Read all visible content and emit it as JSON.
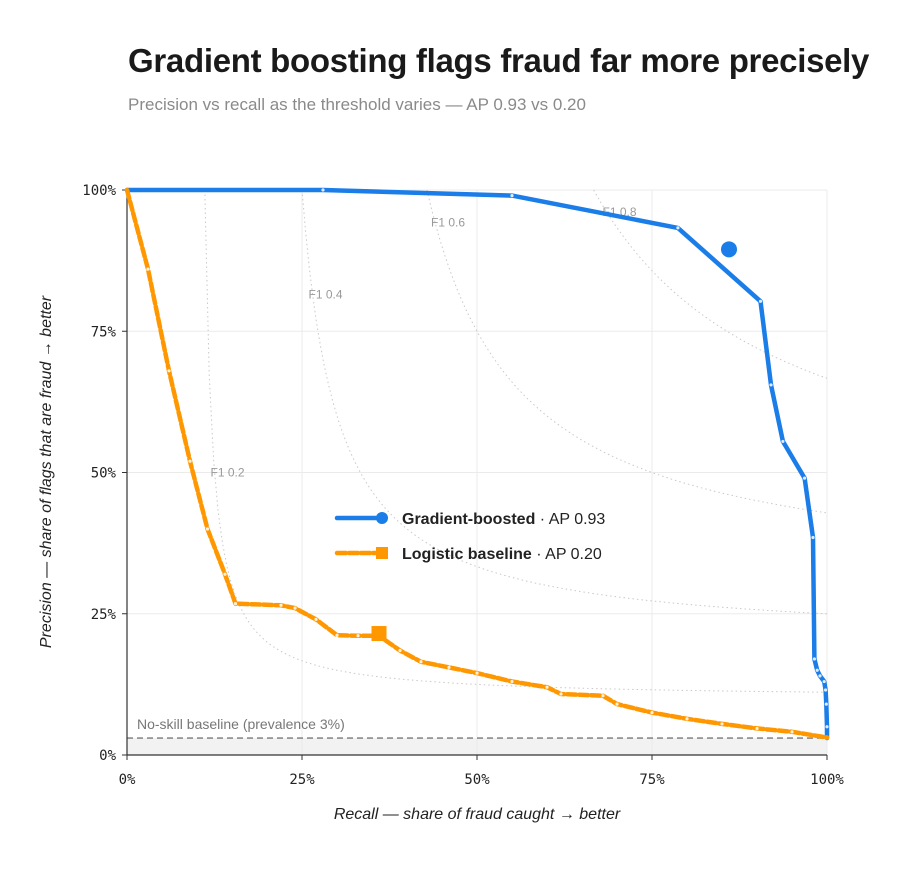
{
  "title": "Gradient boosting flags fraud far more precisely",
  "subtitle": "Precision vs recall as the threshold varies — AP 0.93 vs 0.20",
  "chart_data": {
    "type": "line",
    "title": "Gradient boosting flags fraud far more precisely",
    "subtitle": "Precision vs recall as the threshold varies — AP 0.93 vs 0.20",
    "xlabel": "Recall — share of fraud caught → better",
    "ylabel": "Precision — share of flags that are fraud → better",
    "xlim": [
      0,
      1
    ],
    "ylim": [
      0,
      1
    ],
    "x_ticks": [
      0,
      0.25,
      0.5,
      0.75,
      1
    ],
    "x_tick_labels": [
      "0%",
      "25%",
      "50%",
      "75%",
      "100%"
    ],
    "y_ticks": [
      0,
      0.25,
      0.5,
      0.75,
      1
    ],
    "y_tick_labels": [
      "0%",
      "25%",
      "50%",
      "75%",
      "100%"
    ],
    "grid": true,
    "legend_position": "center",
    "series": [
      {
        "name": "Gradient-boosted",
        "ap_label": "AP 0.93",
        "color": "#1a7de8",
        "dash": "solid",
        "marker": "circle",
        "points": [
          [
            0.0,
            1.0
          ],
          [
            0.28,
            1.0
          ],
          [
            0.55,
            0.99
          ],
          [
            0.787,
            0.933
          ],
          [
            0.905,
            0.803
          ],
          [
            0.92,
            0.655
          ],
          [
            0.937,
            0.555
          ],
          [
            0.968,
            0.49
          ],
          [
            0.98,
            0.385
          ],
          [
            0.982,
            0.17
          ],
          [
            0.986,
            0.15
          ],
          [
            0.99,
            0.14
          ],
          [
            0.996,
            0.13
          ],
          [
            0.998,
            0.115
          ],
          [
            0.999,
            0.09
          ],
          [
            1.0,
            0.05
          ],
          [
            1.0,
            0.03
          ]
        ],
        "operating_point": [
          0.86,
          0.895
        ]
      },
      {
        "name": "Logistic baseline",
        "ap_label": "AP 0.20",
        "color": "#ff9800",
        "dash": "dashed",
        "marker": "square",
        "points": [
          [
            0.0,
            1.0
          ],
          [
            0.03,
            0.86
          ],
          [
            0.06,
            0.68
          ],
          [
            0.09,
            0.52
          ],
          [
            0.115,
            0.4
          ],
          [
            0.14,
            0.32
          ],
          [
            0.155,
            0.268
          ],
          [
            0.22,
            0.265
          ],
          [
            0.24,
            0.26
          ],
          [
            0.27,
            0.24
          ],
          [
            0.3,
            0.212
          ],
          [
            0.33,
            0.211
          ],
          [
            0.36,
            0.211
          ],
          [
            0.39,
            0.185
          ],
          [
            0.42,
            0.165
          ],
          [
            0.46,
            0.155
          ],
          [
            0.5,
            0.145
          ],
          [
            0.55,
            0.13
          ],
          [
            0.6,
            0.12
          ],
          [
            0.62,
            0.108
          ],
          [
            0.68,
            0.105
          ],
          [
            0.7,
            0.09
          ],
          [
            0.75,
            0.075
          ],
          [
            0.8,
            0.064
          ],
          [
            0.85,
            0.055
          ],
          [
            0.9,
            0.047
          ],
          [
            0.95,
            0.041
          ],
          [
            1.0,
            0.031
          ]
        ],
        "operating_point": [
          0.36,
          0.215
        ]
      }
    ],
    "iso_f1": [
      {
        "label": "F1 0.2",
        "f1": 0.2
      },
      {
        "label": "F1 0.4",
        "f1": 0.4
      },
      {
        "label": "F1 0.6",
        "f1": 0.6
      },
      {
        "label": "F1 0.8",
        "f1": 0.8
      }
    ],
    "baseline": {
      "label": "No-skill baseline (prevalence 3%)",
      "value": 0.03
    }
  }
}
